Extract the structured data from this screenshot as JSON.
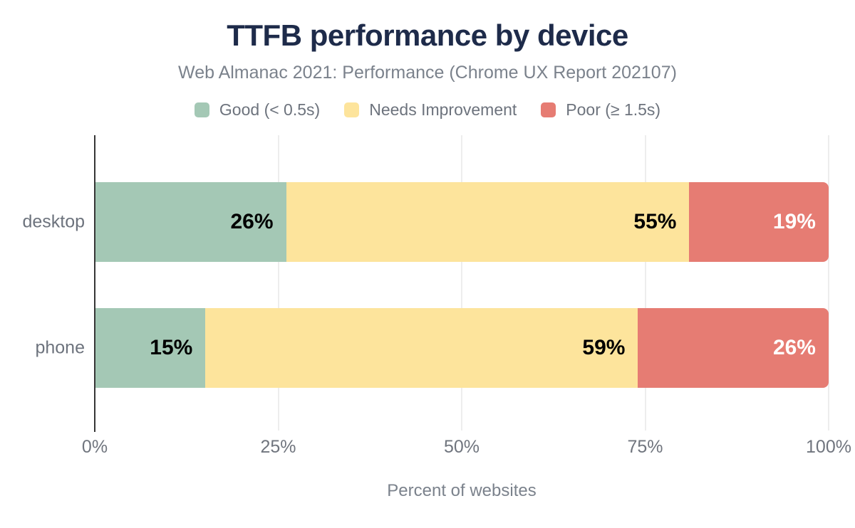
{
  "title": "TTFB performance by device",
  "subtitle": "Web Almanac 2021: Performance (Chrome UX Report 202107)",
  "colors": {
    "title_text": "#1e2b4a",
    "subtitle_text": "#7b828c",
    "axis_text": "#6d737d",
    "gridline": "#ededed",
    "axis_line": "#363636",
    "good": "#a4c8b5",
    "needs_improvement": "#fde49c",
    "poor": "#e67c73"
  },
  "chart_data": {
    "type": "bar",
    "orientation": "horizontal",
    "stacked": true,
    "stack_total": 100,
    "title": "TTFB performance by device",
    "subtitle": "Web Almanac 2021: Performance (Chrome UX Report 202107)",
    "categories": [
      "desktop",
      "phone"
    ],
    "series": [
      {
        "name": "Good (< 0.5s)",
        "color": "#a4c8b5",
        "label_color": "#000000",
        "values": [
          26,
          15
        ]
      },
      {
        "name": "Needs Improvement",
        "color": "#fde49c",
        "label_color": "#000000",
        "values": [
          55,
          59
        ]
      },
      {
        "name": "Poor (≥ 1.5s)",
        "color": "#e67c73",
        "label_color": "#ffffff",
        "values": [
          19,
          26
        ]
      }
    ],
    "value_suffix": "%",
    "data_labels": {
      "desktop": [
        "26%",
        "55%",
        "19%"
      ],
      "phone": [
        "15%",
        "59%",
        "26%"
      ]
    },
    "xlabel": "Percent of websites",
    "x_ticks": [
      "0%",
      "25%",
      "50%",
      "75%",
      "100%"
    ],
    "x_tick_values": [
      0,
      25,
      50,
      75,
      100
    ],
    "xlim": [
      0,
      100
    ],
    "grid": true,
    "legend_position": "top"
  }
}
